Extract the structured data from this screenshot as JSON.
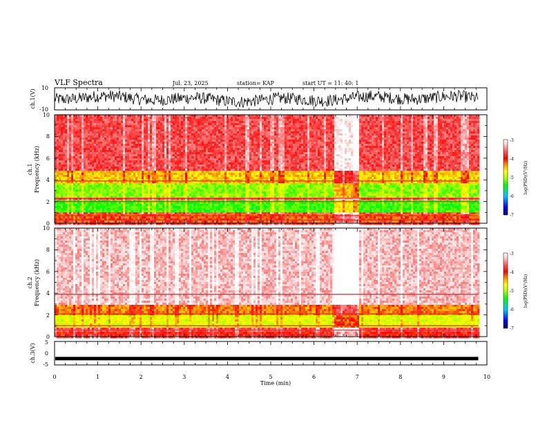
{
  "header": {
    "title": "VLF Spectra",
    "date": "Jul. 23, 2025",
    "station": "station= KAP",
    "start_ut": "start UT =  11: 40: 1"
  },
  "colors": {
    "spectrum_stops": [
      "#00007a",
      "#0000ff",
      "#00c8ff",
      "#00ff00",
      "#b4ff00",
      "#ffff00",
      "#ff8000",
      "#ff0000",
      "#ff6060",
      "#ffd0d0",
      "#ffffff"
    ],
    "waveform": "#000000",
    "axis": "#000000"
  },
  "chart_data": [
    {
      "id": "ch1_waveform",
      "type": "line",
      "ylabel": "ch.1(V)",
      "ylim": [
        -10,
        10
      ],
      "yticks": [
        "10",
        "-10"
      ],
      "xlim": [
        0,
        10
      ],
      "description_series": "noisy broadband voltage, roughly -6 to 10 V, centered near 0",
      "end_minute": 9.8
    },
    {
      "id": "ch1_spectrogram",
      "type": "heatmap",
      "ylabel": "Frequency (kHz)",
      "channel_label": "ch.1",
      "ylim": [
        0,
        10
      ],
      "yticks": [
        "0",
        "2",
        "4",
        "6",
        "8",
        "10"
      ],
      "xlim": [
        0,
        10
      ],
      "colorbar": {
        "label": "log(PSD)(V²/Hz)",
        "range": [
          -7,
          -3
        ],
        "ticks": [
          "-3",
          "-4",
          "-5",
          "-6",
          "-7"
        ]
      },
      "bands_khz": [
        {
          "from": 0.0,
          "to": 0.8,
          "level": -4.2
        },
        {
          "from": 1.0,
          "to": 2.1,
          "level": -5.3
        },
        {
          "from": 2.4,
          "to": 3.6,
          "level": -5.1
        },
        {
          "from": 3.6,
          "to": 4.8,
          "level": -4.5
        },
        {
          "from": 4.8,
          "to": 10.0,
          "level": -3.7
        }
      ],
      "quiet_interval_min": [
        6.45,
        7.0
      ],
      "end_minute": 9.8
    },
    {
      "id": "ch2_spectrogram",
      "type": "heatmap",
      "ylabel": "Frequency (kHz)",
      "channel_label": "ch.2",
      "ylim": [
        0,
        10
      ],
      "yticks": [
        "0",
        "2",
        "4",
        "6",
        "8",
        "10"
      ],
      "xlim": [
        0,
        10
      ],
      "colorbar": {
        "label": "log(PSD)(V²/Hz)",
        "range": [
          -7,
          -3
        ],
        "ticks": [
          "-3",
          "-4",
          "-5",
          "-6",
          "-7"
        ]
      },
      "bands_khz": [
        {
          "from": 0.0,
          "to": 0.5,
          "level": -4.0
        },
        {
          "from": 0.8,
          "to": 2.0,
          "level": -4.8
        },
        {
          "from": 2.0,
          "to": 3.0,
          "level": -4.3
        },
        {
          "from": 3.0,
          "to": 10.0,
          "level": -3.3
        }
      ],
      "quiet_interval_min": [
        6.45,
        7.0
      ],
      "end_minute": 9.8
    },
    {
      "id": "ch3_waveform",
      "type": "line",
      "ylabel": "ch.3(V)",
      "ylim": [
        -5,
        5
      ],
      "yticks": [
        "5",
        "0",
        "-5"
      ],
      "xlim": [
        0,
        10
      ],
      "xlabel": "Time (min)",
      "xticks": [
        "0",
        "1",
        "2",
        "3",
        "4",
        "5",
        "6",
        "7",
        "8",
        "9",
        "10"
      ],
      "level_v": -2.3,
      "end_minute": 9.8
    }
  ]
}
